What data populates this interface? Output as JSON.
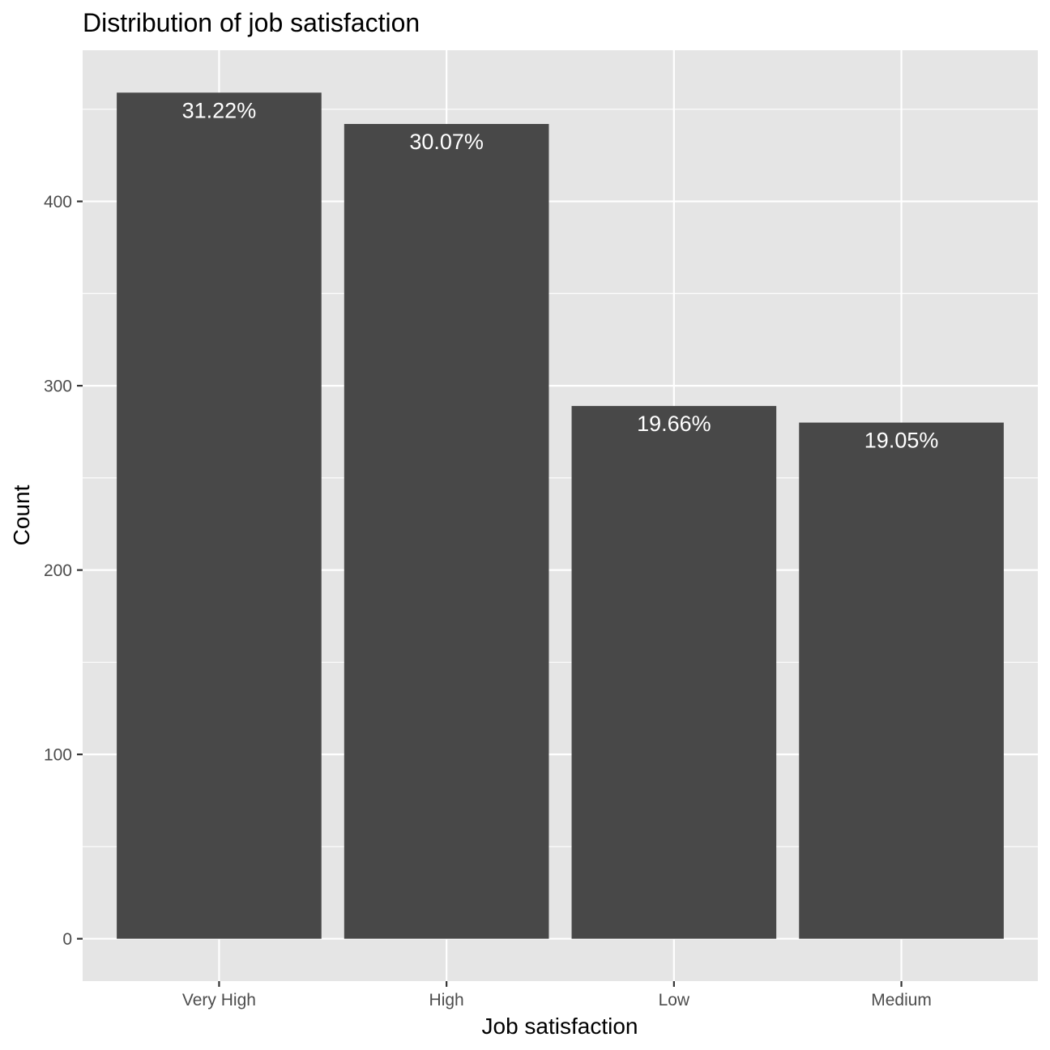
{
  "chart_data": {
    "type": "bar",
    "title": "Distribution of job satisfaction",
    "xlabel": "Job satisfaction",
    "ylabel": "Count",
    "categories": [
      "Very High",
      "High",
      "Low",
      "Medium"
    ],
    "values": [
      459,
      442,
      289,
      280
    ],
    "labels": [
      "31.22%",
      "30.07%",
      "19.66%",
      "19.05%"
    ],
    "ylim": [
      -23,
      482
    ],
    "yticks": [
      0,
      100,
      200,
      300,
      400
    ],
    "grid": true,
    "legend": "none",
    "colors": {
      "panel": "#e5e5e5",
      "bar": "#484848",
      "grid": "#ffffff",
      "bar_label": "#ffffff",
      "tick_label": "#4d4d4d",
      "tick_mark": "#333333"
    }
  }
}
